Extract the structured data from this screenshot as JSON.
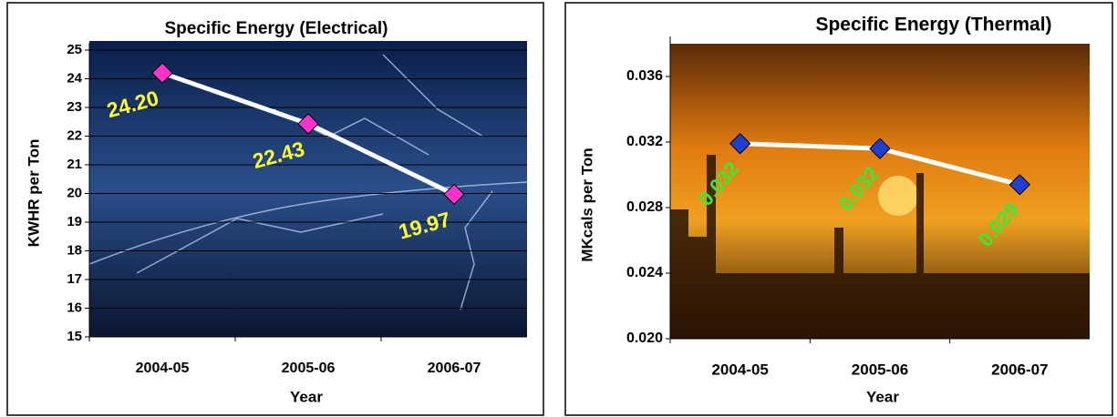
{
  "chart_data": [
    {
      "type": "line",
      "title": "Specific Energy (Electrical)",
      "y_label": "KWHR per Ton",
      "x_label": "Year",
      "categories": [
        "2004-05",
        "2005-06",
        "2006-07"
      ],
      "values": [
        24.2,
        22.43,
        19.97
      ],
      "value_labels": [
        "24.20",
        "22.43",
        "19.97"
      ],
      "color": "#ffffff",
      "marker_color": "#ff33cc",
      "label_color": "#ffff33",
      "ylim": [
        15,
        25
      ],
      "yticks": [
        15,
        16,
        17,
        18,
        19,
        20,
        21,
        22,
        23,
        24,
        25
      ],
      "grid": true
    },
    {
      "type": "line",
      "title": "Specific Energy (Thermal)",
      "y_label": "MKcals per Ton",
      "x_label": "Year",
      "categories": [
        "2004-05",
        "2005-06",
        "2006-07"
      ],
      "values": [
        0.0319,
        0.0316,
        0.0294
      ],
      "value_labels": [
        "0.032",
        "0.032",
        "0.029"
      ],
      "color": "#ffffff",
      "marker_color": "#1f3fd0",
      "label_color": "#33ee33",
      "ylim": [
        0.02,
        0.038
      ],
      "yticks": [
        {
          "value": 0.02,
          "label": "0.020"
        },
        0.024,
        0.028,
        0.032,
        0.036
      ],
      "grid": false
    }
  ]
}
